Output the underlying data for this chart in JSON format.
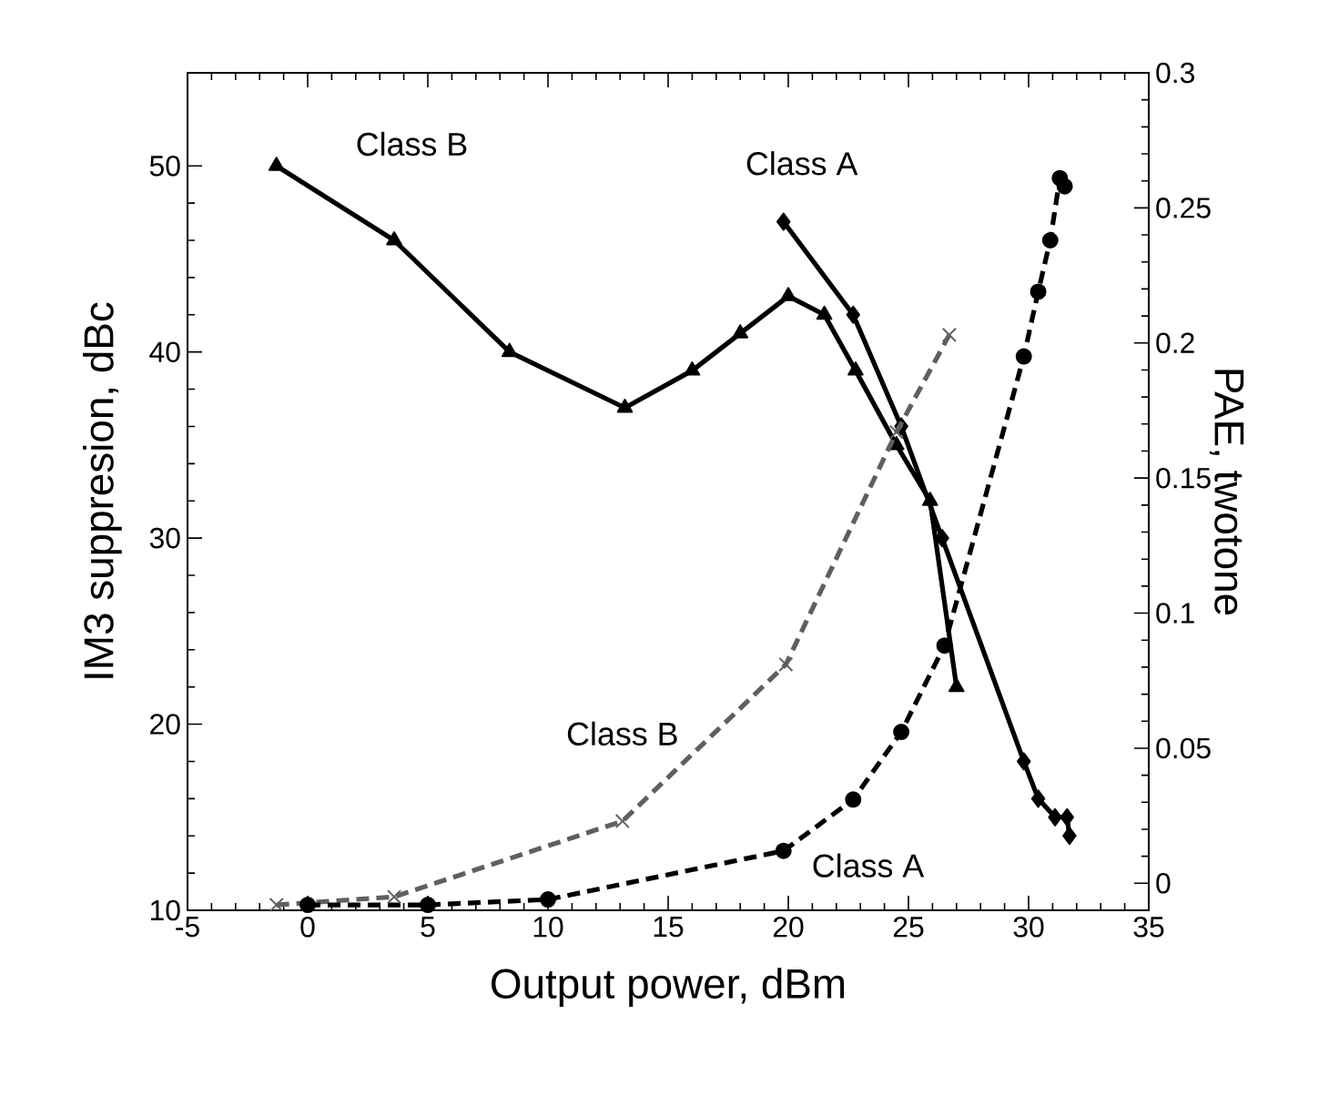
{
  "chart_data": {
    "type": "line",
    "xlabel": "Output power, dBm",
    "ylabel": "IM3 suppresion, dBc",
    "y2label": "PAE, twotone",
    "xlim": [
      -5,
      35
    ],
    "xticks": [
      -5,
      0,
      5,
      10,
      15,
      20,
      25,
      30,
      35
    ],
    "ylim": [
      10,
      55
    ],
    "yticks": [
      10,
      20,
      30,
      40,
      50
    ],
    "y2lim": [
      -0.01,
      0.3
    ],
    "y2ticks": [
      0,
      0.05,
      0.1,
      0.15,
      0.2,
      0.25,
      0.3
    ],
    "grid": false,
    "series": [
      {
        "name": "Class B",
        "color": "#000000",
        "marker": "triangle",
        "line_style": "solid",
        "x": [
          -1.3,
          3.6,
          8.4,
          13.2,
          16,
          18,
          20,
          21.5,
          22.8,
          24.5,
          25.9,
          27
        ],
        "values": [
          50,
          46,
          40,
          37,
          39,
          41,
          43,
          42,
          39,
          35,
          32,
          22
        ]
      },
      {
        "name": "Class A",
        "color": "#000000",
        "marker": "diamond",
        "line_style": "solid",
        "x": [
          19.8,
          22.7,
          24.7,
          26.4,
          29.8,
          30.4,
          31.1,
          31.6,
          31.7
        ],
        "values": [
          47,
          42,
          36,
          30,
          18,
          16,
          15,
          15,
          14
        ]
      },
      {
        "name": "Class B",
        "axis": "y2",
        "color": "#5f5f5f",
        "marker": "cross",
        "line_style": "dashed",
        "x": [
          -1.3,
          3.6,
          13.1,
          19.9,
          24.5,
          26.7
        ],
        "values": [
          -0.008,
          -0.005,
          0.023,
          0.081,
          0.167,
          0.203
        ]
      },
      {
        "name": "Class A",
        "axis": "y2",
        "color": "#000000",
        "marker": "circle",
        "line_style": "dashed",
        "x": [
          0,
          5,
          10,
          19.8,
          22.7,
          24.7,
          26.5,
          29.8,
          30.4,
          30.9,
          31.3,
          31.5
        ],
        "values": [
          -0.008,
          -0.008,
          -0.006,
          0.012,
          0.031,
          0.056,
          0.088,
          0.195,
          0.219,
          0.238,
          0.261,
          0.258
        ]
      }
    ]
  }
}
